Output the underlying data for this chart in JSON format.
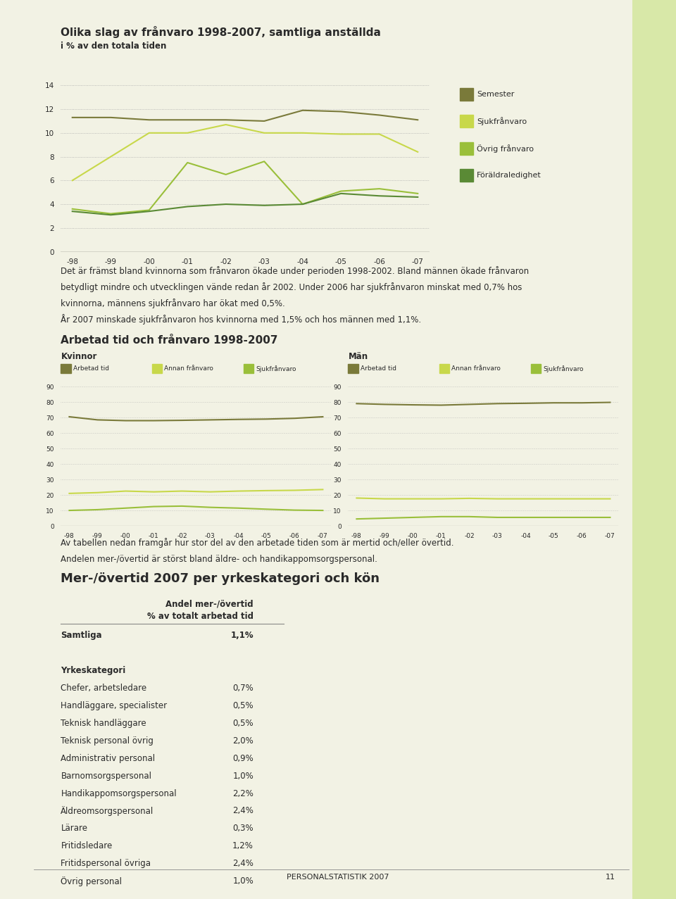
{
  "title1": "Olika slag av frånvaro 1998-2007, samtliga anställda",
  "subtitle1": "i % av den totala tiden",
  "years": [
    "-98",
    "-99",
    "-00",
    "-01",
    "-02",
    "-03",
    "-04",
    "-05",
    "-06",
    "-07"
  ],
  "chart1": {
    "semester": [
      11.3,
      11.3,
      11.1,
      11.1,
      11.1,
      11.0,
      11.9,
      11.8,
      11.5,
      11.1
    ],
    "sjukfranvaro": [
      6.0,
      8.0,
      10.0,
      10.0,
      10.7,
      10.0,
      10.0,
      9.9,
      9.9,
      8.4
    ],
    "ovrig_franvaro": [
      3.6,
      3.2,
      3.5,
      7.5,
      6.5,
      7.6,
      4.0,
      5.1,
      5.3,
      4.9
    ],
    "foraldraledighet": [
      3.4,
      3.1,
      3.4,
      3.8,
      4.0,
      3.9,
      4.0,
      4.9,
      4.7,
      4.6
    ],
    "colors": {
      "semester": "#7a7a3a",
      "sjukfranvaro": "#c8d84a",
      "ovrig_franvaro": "#9abf3a",
      "foraldraledighet": "#5a8a35"
    },
    "ylim": [
      0,
      14
    ],
    "yticks": [
      0,
      2,
      4,
      6,
      8,
      10,
      12,
      14
    ]
  },
  "legend1": [
    [
      "Semester",
      "#7a7a3a"
    ],
    [
      "Sjukfrånvaro",
      "#c8d84a"
    ],
    [
      "Övrig frånvaro",
      "#9abf3a"
    ],
    [
      "Föräldraledighet",
      "#5a8a35"
    ]
  ],
  "text1_lines": [
    "Det är främst bland kvinnorna som frånvaron ökade under perioden 1998-2002. Bland männen ökade frånvaron",
    "betydligt mindre och utvecklingen vände redan år 2002. Under 2006 har sjukfrånvaron minskat med 0,7% hos",
    "kvinnorna, männens sjukfrånvaro har ökat med 0,5%.",
    "År 2007 minskade sjukfrånvaron hos kvinnorna med 1,5% och hos männen med 1,1%."
  ],
  "title2": "Arbetad tid och frånvaro 1998-2007",
  "chart2_kvinnor": {
    "label": "Kvinnor",
    "arbetad_tid": [
      70.5,
      68.5,
      68.0,
      68.0,
      68.2,
      68.5,
      68.8,
      69.0,
      69.5,
      70.5
    ],
    "annan_franvaro": [
      21.0,
      21.5,
      22.5,
      22.0,
      22.5,
      22.0,
      22.5,
      22.8,
      23.0,
      23.5
    ],
    "sjukfranvaro": [
      10.0,
      10.5,
      11.5,
      12.5,
      12.8,
      12.0,
      11.5,
      10.8,
      10.2,
      10.0
    ]
  },
  "chart2_man": {
    "label": "Män",
    "arbetad_tid": [
      79.0,
      78.5,
      78.2,
      78.0,
      78.5,
      79.0,
      79.2,
      79.5,
      79.5,
      79.8
    ],
    "annan_franvaro": [
      18.0,
      17.5,
      17.5,
      17.5,
      17.8,
      17.5,
      17.5,
      17.5,
      17.5,
      17.5
    ],
    "sjukfranvaro": [
      4.5,
      5.0,
      5.5,
      6.0,
      6.0,
      5.5,
      5.5,
      5.5,
      5.5,
      5.5
    ]
  },
  "chart2_colors": {
    "arbetad_tid": "#7a7a3a",
    "annan_franvaro": "#c8d84a",
    "sjukfranvaro": "#9abf3a"
  },
  "legend2": [
    [
      "Arbetad tid",
      "#7a7a3a"
    ],
    [
      "Annan frånvaro",
      "#c8d84a"
    ],
    [
      "Sjukfrånvaro",
      "#9abf3a"
    ]
  ],
  "chart2_ylim": [
    0,
    90
  ],
  "chart2_yticks": [
    0,
    10,
    20,
    30,
    40,
    50,
    60,
    70,
    80,
    90
  ],
  "text2_lines": [
    "Av tabellen nedan framgår hur stor del av den arbetade tiden som är mertid och/eller övertid.",
    "Andelen mer-/övertid är störst bland äldre- och handikappomsorgspersonal."
  ],
  "title3": "Mer-/övertid 2007 per yrkeskategori och kön",
  "table_header1": "Andel mer-/övertid",
  "table_header2": "% av totalt arbetad tid",
  "table_data": [
    [
      "Samtliga",
      "1,1%",
      true,
      false
    ],
    [
      "",
      "",
      false,
      false
    ],
    [
      "Yrkeskategori",
      "",
      false,
      true
    ],
    [
      "Chefer, arbetsledare",
      "0,7%",
      false,
      false
    ],
    [
      "Handläggare, specialister",
      "0,5%",
      false,
      false
    ],
    [
      "Teknisk handläggare",
      "0,5%",
      false,
      false
    ],
    [
      "Teknisk personal övrig",
      "2,0%",
      false,
      false
    ],
    [
      "Administrativ personal",
      "0,9%",
      false,
      false
    ],
    [
      "Barnomsorgspersonal",
      "1,0%",
      false,
      false
    ],
    [
      "Handikappomsorgspersonal",
      "2,2%",
      false,
      false
    ],
    [
      "Äldreomsorgspersonal",
      "2,4%",
      false,
      false
    ],
    [
      "Lärare",
      "0,3%",
      false,
      false
    ],
    [
      "Fritidsledare",
      "1,2%",
      false,
      false
    ],
    [
      "Fritidspersonal övriga",
      "2,4%",
      false,
      false
    ],
    [
      "Övrig personal",
      "1,0%",
      false,
      false
    ]
  ],
  "footer_text": "PERSONALSTATISTIK 2007",
  "footer_page": "11",
  "bg_color": "#f2f2e4",
  "sidebar_color": "#d8e8a8",
  "text_color": "#2a2a2a",
  "grid_color": "#aaaaaa",
  "axis_color": "#555555"
}
